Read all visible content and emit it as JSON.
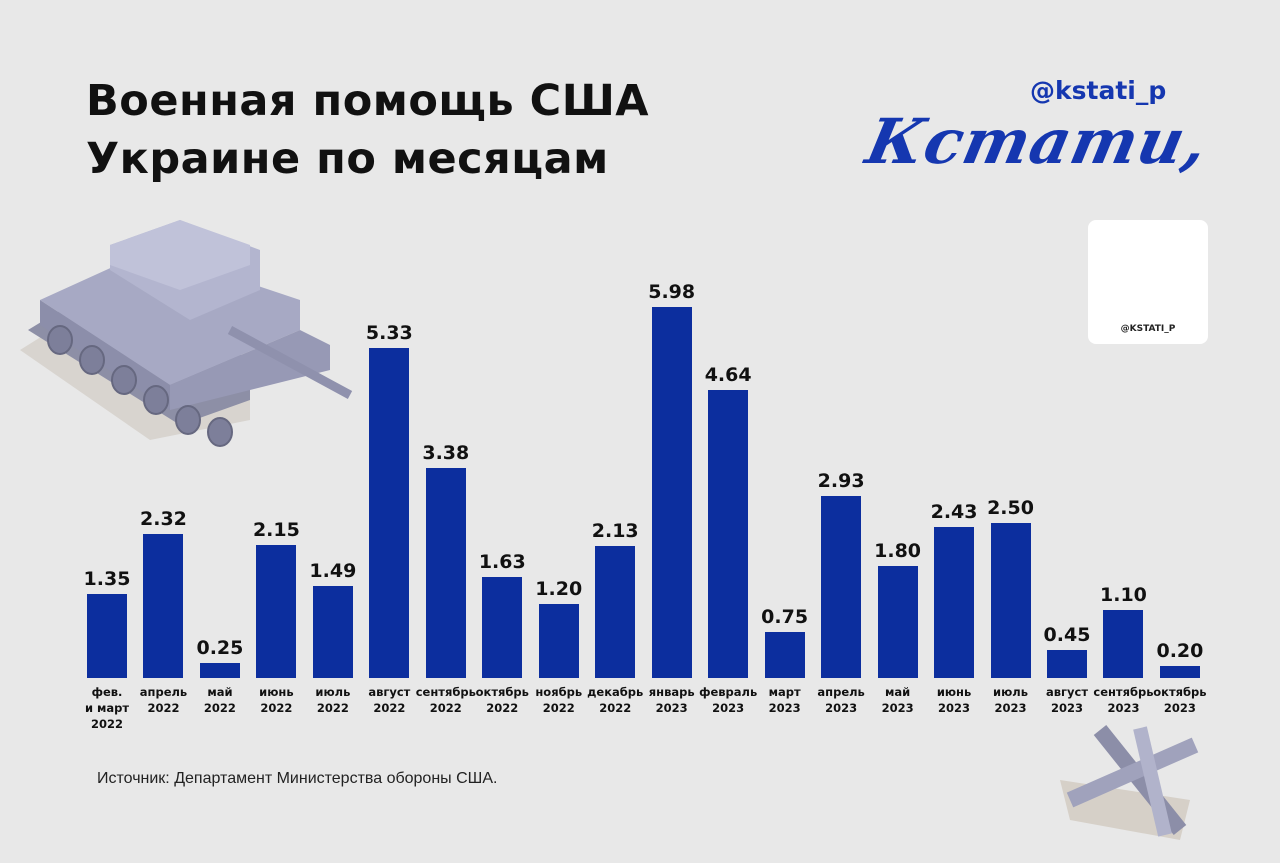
{
  "chart_data": {
    "type": "bar",
    "title": "Военная помощь США\nУкраине по месяцам",
    "categories": [
      "фев.\nи март\n2022",
      "апрель\n2022",
      "май\n2022",
      "июнь\n2022",
      "июль\n2022",
      "август\n2022",
      "сентябрь\n2022",
      "октябрь\n2022",
      "ноябрь\n2022",
      "декабрь\n2022",
      "январь\n2023",
      "февраль\n2023",
      "март\n2023",
      "апрель\n2023",
      "май\n2023",
      "июнь\n2023",
      "июль\n2023",
      "август\n2023",
      "сентябрь\n2023",
      "октябрь\n2023"
    ],
    "values": [
      1.35,
      2.32,
      0.25,
      2.15,
      1.49,
      5.33,
      3.38,
      1.63,
      1.2,
      2.13,
      5.98,
      4.64,
      0.75,
      2.93,
      1.8,
      2.43,
      2.5,
      0.45,
      1.1,
      0.2
    ],
    "value_labels": [
      "1.35",
      "2.32",
      "0.25",
      "2.15",
      "1.49",
      "5.33",
      "3.38",
      "1.63",
      "1.20",
      "2.13",
      "5.98",
      "4.64",
      "0.75",
      "2.93",
      "1.80",
      "2.43",
      "2.50",
      "0.45",
      "1.10",
      "0.20"
    ],
    "color": "#0c2e9e",
    "source": "Источник: Департамент Министерства обороны США."
  },
  "branding": {
    "handle": "@kstati_p",
    "logo": "Кстати,",
    "qr_label": "@KSTATI_P"
  }
}
